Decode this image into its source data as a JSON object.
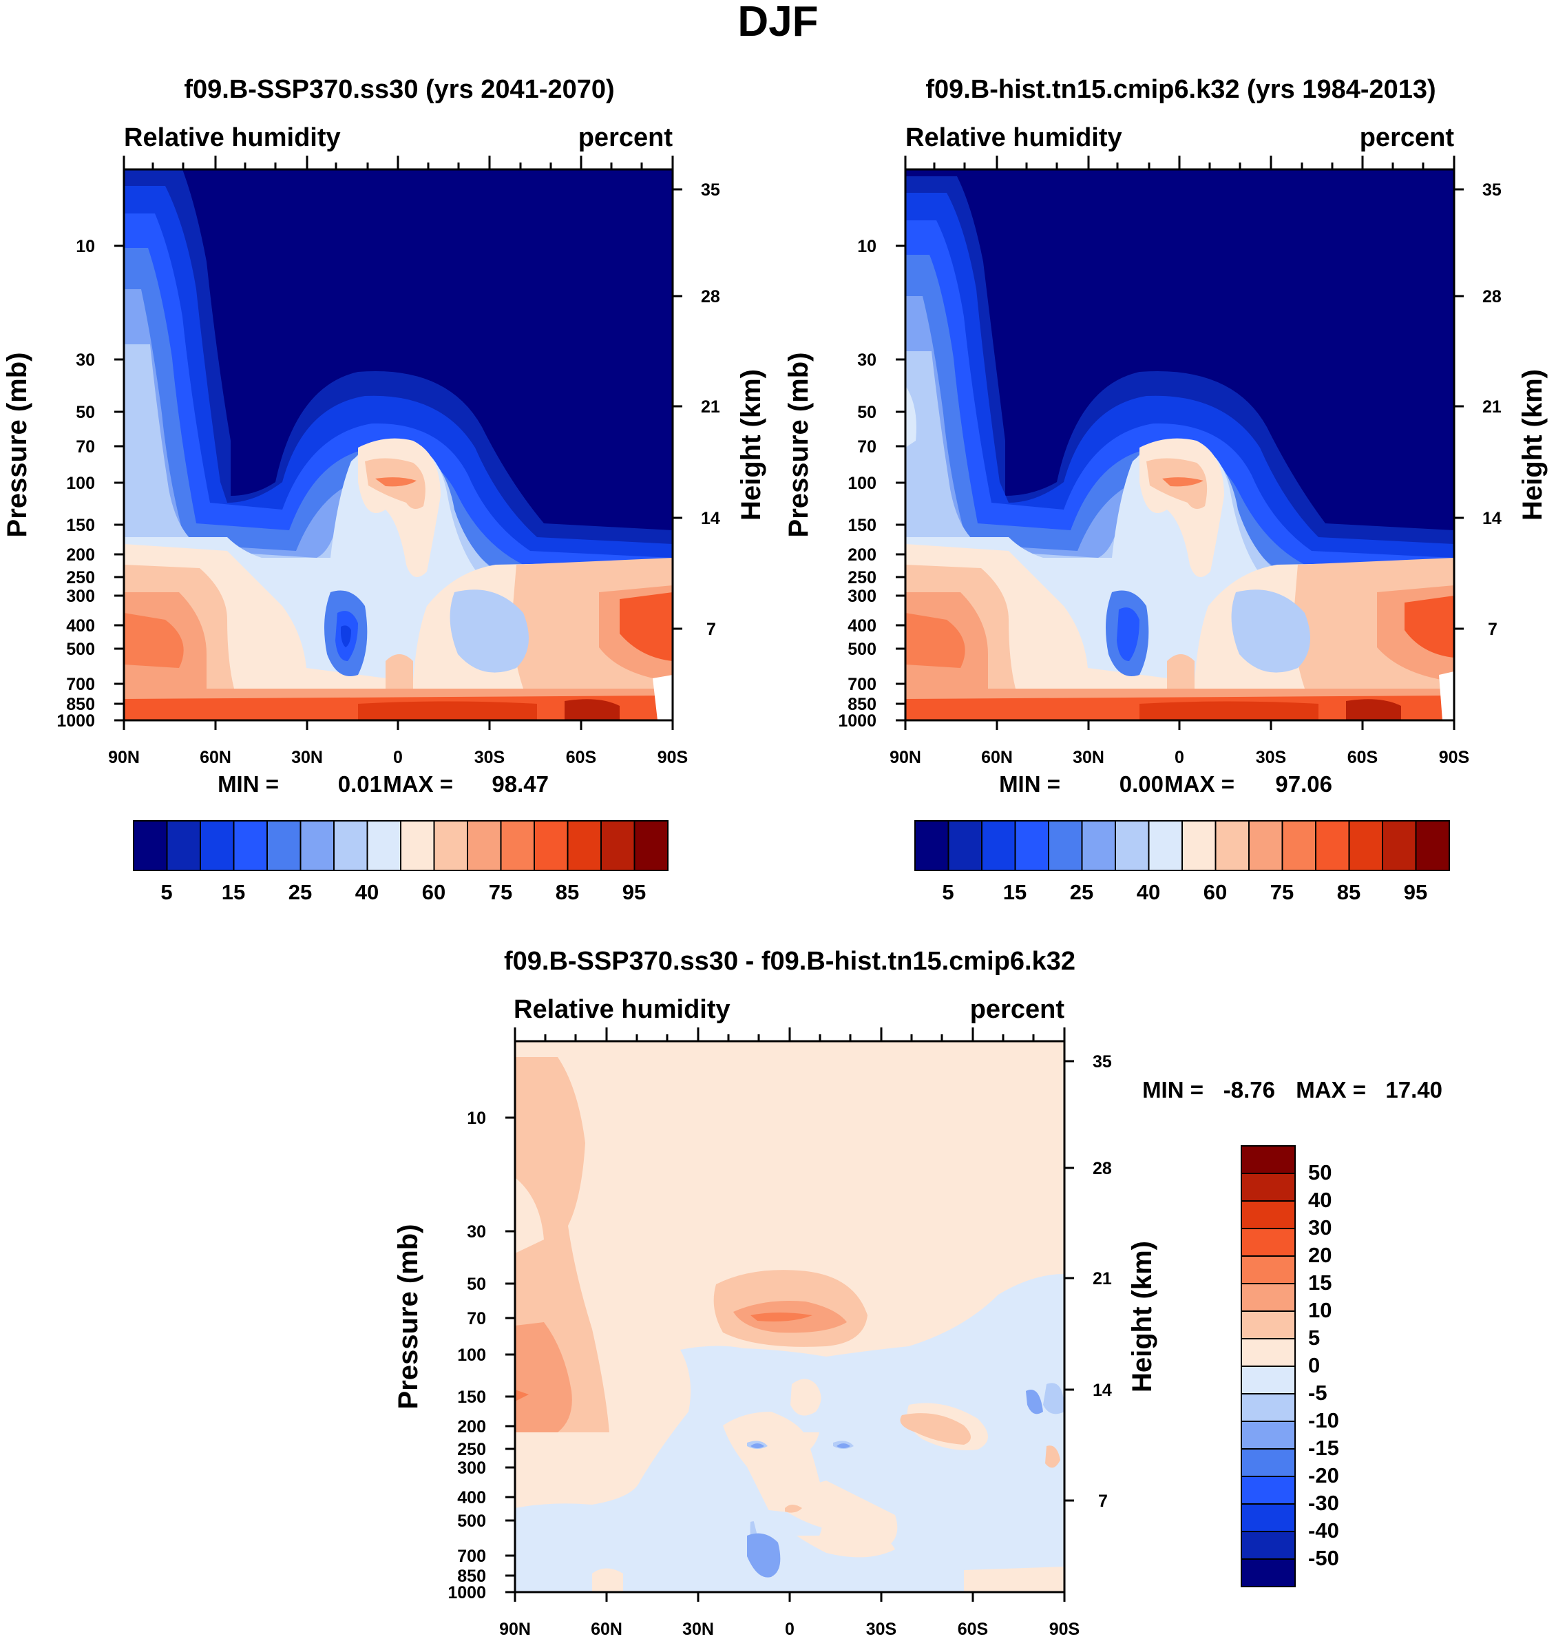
{
  "figure_title": "DJF",
  "chart_data": [
    {
      "type": "contour",
      "title": "f09.B-SSP370.ss30 (yrs 2041-2070)",
      "left_header": "Relative humidity",
      "right_header": "percent",
      "ylabel": "Pressure (mb)",
      "ylabel_right": "Height (km)",
      "x_tick_labels": [
        "90N",
        "60N",
        "30N",
        "0",
        "30S",
        "60S",
        "90S"
      ],
      "x_ticks": [
        90,
        60,
        30,
        0,
        -30,
        -60,
        -90
      ],
      "y_tick_labels": [
        "10",
        "30",
        "50",
        "70",
        "100",
        "150",
        "200",
        "250",
        "300",
        "400",
        "500",
        "700",
        "850",
        "1000"
      ],
      "y_ticks": [
        10,
        30,
        50,
        70,
        100,
        150,
        200,
        250,
        300,
        400,
        500,
        700,
        850,
        1000
      ],
      "height_tick_labels": [
        "35",
        "28",
        "21",
        "14",
        "7"
      ],
      "min_label": "MIN =",
      "min_value": "0.01",
      "max_label": "MAX =",
      "max_value": "98.47",
      "colorbar_labels": [
        "5",
        "15",
        "25",
        "40",
        "60",
        "75",
        "85",
        "95"
      ]
    },
    {
      "type": "contour",
      "title": "f09.B-hist.tn15.cmip6.k32 (yrs 1984-2013)",
      "left_header": "Relative humidity",
      "right_header": "percent",
      "ylabel": "Pressure (mb)",
      "ylabel_right": "Height (km)",
      "x_tick_labels": [
        "90N",
        "60N",
        "30N",
        "0",
        "30S",
        "60S",
        "90S"
      ],
      "x_ticks": [
        90,
        60,
        30,
        0,
        -30,
        -60,
        -90
      ],
      "y_tick_labels": [
        "10",
        "30",
        "50",
        "70",
        "100",
        "150",
        "200",
        "250",
        "300",
        "400",
        "500",
        "700",
        "850",
        "1000"
      ],
      "y_ticks": [
        10,
        30,
        50,
        70,
        100,
        150,
        200,
        250,
        300,
        400,
        500,
        700,
        850,
        1000
      ],
      "height_tick_labels": [
        "35",
        "28",
        "21",
        "14",
        "7"
      ],
      "min_label": "MIN =",
      "min_value": "0.00",
      "max_label": "MAX =",
      "max_value": "97.06",
      "colorbar_labels": [
        "5",
        "15",
        "25",
        "40",
        "60",
        "75",
        "85",
        "95"
      ]
    },
    {
      "type": "contour",
      "title": "f09.B-SSP370.ss30 - f09.B-hist.tn15.cmip6.k32",
      "left_header": "Relative humidity",
      "right_header": "percent",
      "ylabel": "Pressure (mb)",
      "ylabel_right": "Height (km)",
      "x_tick_labels": [
        "90N",
        "60N",
        "30N",
        "0",
        "30S",
        "60S",
        "90S"
      ],
      "x_ticks": [
        90,
        60,
        30,
        0,
        -30,
        -60,
        -90
      ],
      "y_tick_labels": [
        "10",
        "30",
        "50",
        "70",
        "100",
        "150",
        "200",
        "250",
        "300",
        "400",
        "500",
        "700",
        "850",
        "1000"
      ],
      "y_ticks": [
        10,
        30,
        50,
        70,
        100,
        150,
        200,
        250,
        300,
        400,
        500,
        700,
        850,
        1000
      ],
      "height_tick_labels": [
        "35",
        "28",
        "21",
        "14",
        "7"
      ],
      "min_label": "MIN =",
      "min_value": "-8.76",
      "max_label": "MAX =",
      "max_value": "17.40",
      "colorbar_labels": [
        "50",
        "40",
        "30",
        "20",
        "15",
        "10",
        "5",
        "0",
        "-5",
        "-10",
        "-15",
        "-20",
        "-30",
        "-40",
        "-50"
      ]
    }
  ],
  "colors": {
    "abs_scale": [
      "#000080",
      "#0a26b4",
      "#0f3ee6",
      "#2457ff",
      "#4a7df0",
      "#7fa4f5",
      "#b4cdf8",
      "#dbe9fb",
      "#fde8d8",
      "#fbc6a8",
      "#f9a27d",
      "#f97f52",
      "#f5582a",
      "#e13a10",
      "#b82008",
      "#800000"
    ],
    "diff_scale": [
      "#800000",
      "#b82008",
      "#e13a10",
      "#f5582a",
      "#f97f52",
      "#f9a27d",
      "#fbc6a8",
      "#fde8d8",
      "#dbe9fb",
      "#b4cdf8",
      "#7fa4f5",
      "#4a7df0",
      "#2457ff",
      "#0f3ee6",
      "#0a26b4",
      "#000080"
    ]
  }
}
